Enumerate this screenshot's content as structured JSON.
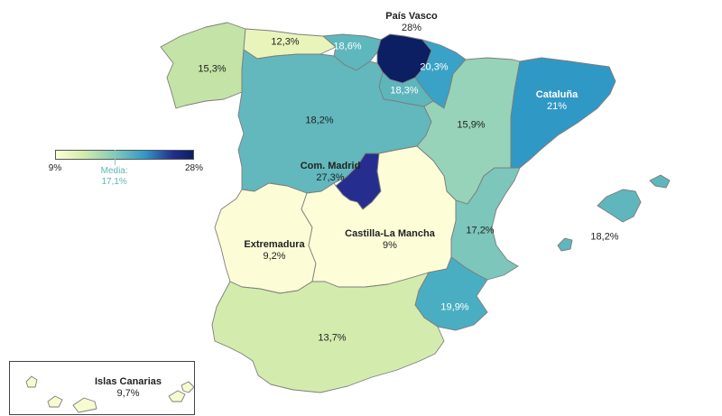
{
  "map": {
    "header_fragment": "",
    "regions": [
      {
        "id": "galicia",
        "value": "15,3%",
        "fill": "#c4e3a6"
      },
      {
        "id": "asturias",
        "value": "12,3%",
        "fill": "#e9f4bb"
      },
      {
        "id": "cantabria",
        "value": "18,6%",
        "fill": "#5eb7bd"
      },
      {
        "id": "pais-vasco",
        "name": "País Vasco",
        "value": "28%",
        "fill": "#0b1f62"
      },
      {
        "id": "navarra",
        "value": "20,3%",
        "fill": "#3aa2c6"
      },
      {
        "id": "la-rioja",
        "value": "18,3%",
        "fill": "#5eb6bd"
      },
      {
        "id": "aragon",
        "value": "15,9%",
        "fill": "#97d3b8"
      },
      {
        "id": "cataluna",
        "name": "Cataluña",
        "value": "21%",
        "fill": "#3098c5"
      },
      {
        "id": "castilla-leon",
        "value": "18,2%",
        "fill": "#62b8bc"
      },
      {
        "id": "madrid",
        "name": "Com. Madrid",
        "value": "27,3%",
        "fill": "#252e8e"
      },
      {
        "id": "extremadura",
        "name": "Extremadura",
        "value": "9,2%",
        "fill": "#fcfdd6"
      },
      {
        "id": "castilla-la-mancha",
        "name": "Castilla-La Mancha",
        "value": "9%",
        "fill": "#fdfed8"
      },
      {
        "id": "valencia",
        "value": "17,2%",
        "fill": "#7cc6bb"
      },
      {
        "id": "murcia",
        "value": "19,9%",
        "fill": "#4aaec2"
      },
      {
        "id": "andalucia",
        "value": "13,7%",
        "fill": "#d3ecad"
      },
      {
        "id": "baleares",
        "value": "18,2%",
        "fill": "#5fb6bd"
      },
      {
        "id": "canarias",
        "name": "Islas Canarias",
        "value": "9,7%",
        "fill": "#f7fbd0"
      }
    ]
  },
  "legend": {
    "min_label": "9%",
    "max_label": "28%",
    "mean_title": "Media:",
    "mean_value": "17,1%",
    "min_value": 9,
    "max_value": 28,
    "mean": 17.1,
    "gradient": [
      "#fdfed8",
      "#d3ecad",
      "#7cc6bb",
      "#3098c5",
      "#252e8e",
      "#0b1f62"
    ],
    "mean_color": "#5ab8b2"
  },
  "colors": {
    "border": "#7d7d7d",
    "label_text": "#222222",
    "background": "#ffffff"
  }
}
